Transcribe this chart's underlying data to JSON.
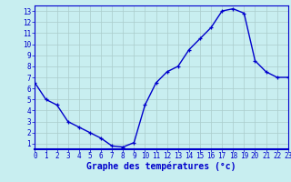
{
  "hours": [
    0,
    1,
    2,
    3,
    4,
    5,
    6,
    7,
    8,
    9,
    10,
    11,
    12,
    13,
    14,
    15,
    16,
    17,
    18,
    19,
    20,
    21,
    22,
    23
  ],
  "temps": [
    6.5,
    5.0,
    4.5,
    3.0,
    2.5,
    2.0,
    1.5,
    0.8,
    0.7,
    1.1,
    4.5,
    6.5,
    7.5,
    8.0,
    9.5,
    10.5,
    11.5,
    13.0,
    13.2,
    12.8,
    8.5,
    7.5,
    7.0,
    7.0
  ],
  "line_color": "#0000cc",
  "marker": "+",
  "bg_color": "#c8eef0",
  "grid_color": "#aacccc",
  "xlabel": "Graphe des températures (°c)",
  "xlabel_color": "#0000cc",
  "xlim": [
    0,
    23
  ],
  "ylim": [
    0.5,
    13.5
  ],
  "yticks": [
    1,
    2,
    3,
    4,
    5,
    6,
    7,
    8,
    9,
    10,
    11,
    12,
    13
  ],
  "xticks": [
    0,
    1,
    2,
    3,
    4,
    5,
    6,
    7,
    8,
    9,
    10,
    11,
    12,
    13,
    14,
    15,
    16,
    17,
    18,
    19,
    20,
    21,
    22,
    23
  ],
  "tick_color": "#0000cc",
  "tick_fontsize": 5.5,
  "xlabel_fontsize": 7,
  "label_color": "#0000cc",
  "spine_color": "#0000cc",
  "spine_bottom_color": "#0000cc"
}
